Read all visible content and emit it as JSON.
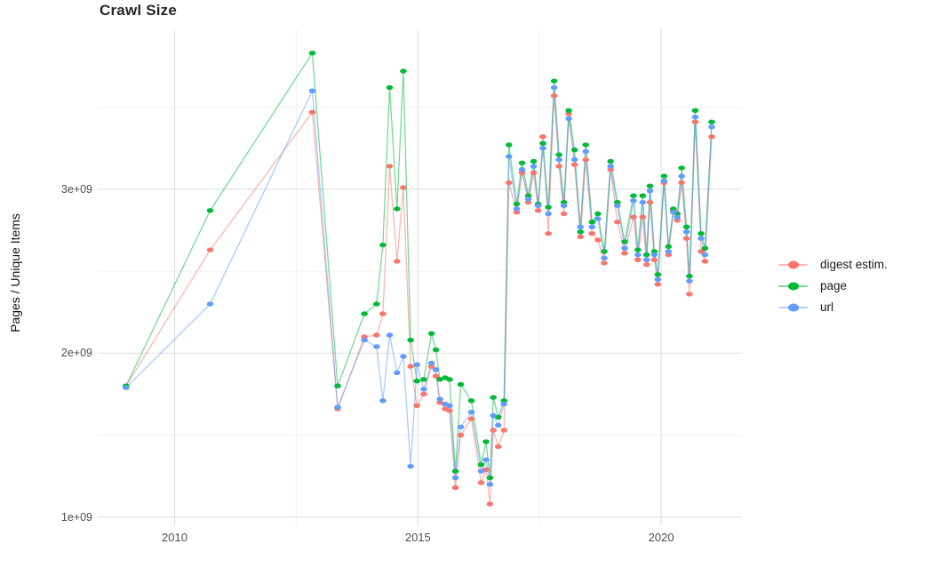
{
  "title": "Crawl Size",
  "y_axis": {
    "label": "Pages / Unique Items",
    "ticks": [
      "1e+09",
      "2e+09",
      "3e+09"
    ]
  },
  "x_axis": {
    "ticks": [
      "2010",
      "2015",
      "2020"
    ]
  },
  "legend": {
    "items": [
      {
        "label": "digest estim.",
        "color": "#F8766D"
      },
      {
        "label": "page",
        "color": "#00BA38"
      },
      {
        "label": "url",
        "color": "#619CFF"
      }
    ]
  },
  "chart_data": {
    "type": "line",
    "title": "Crawl Size",
    "xlabel": "",
    "ylabel": "Pages / Unique Items",
    "x_unit": "year",
    "y_unit": "pages / unique items",
    "grid": true,
    "legend_position": "right",
    "xlim": [
      2008.42,
      2021.66
    ],
    "ylim": [
      950000000.0,
      3975000000.0
    ],
    "x_ticks": [
      2010,
      2015,
      2020
    ],
    "x_minor": [
      2012.5,
      2017.5
    ],
    "y_ticks": [
      1000000000.0,
      2000000000.0,
      3000000000.0
    ],
    "y_minor": [
      1500000000.0,
      2500000000.0,
      3500000000.0
    ],
    "x": [
      2009.0,
      2010.73,
      2012.83,
      2013.35,
      2013.9,
      2014.15,
      2014.28,
      2014.42,
      2014.57,
      2014.7,
      2014.85,
      2014.98,
      2015.12,
      2015.28,
      2015.37,
      2015.45,
      2015.56,
      2015.65,
      2015.77,
      2015.88,
      2016.1,
      2016.3,
      2016.4,
      2016.48,
      2016.55,
      2016.65,
      2016.77,
      2016.87,
      2017.03,
      2017.14,
      2017.27,
      2017.38,
      2017.47,
      2017.57,
      2017.68,
      2017.8,
      2017.9,
      2018.0,
      2018.1,
      2018.22,
      2018.34,
      2018.45,
      2018.58,
      2018.7,
      2018.83,
      2018.96,
      2019.1,
      2019.25,
      2019.43,
      2019.52,
      2019.62,
      2019.7,
      2019.77,
      2019.86,
      2019.93,
      2020.06,
      2020.15,
      2020.25,
      2020.33,
      2020.42,
      2020.52,
      2020.58,
      2020.7,
      2020.82,
      2020.9,
      2021.04
    ],
    "series": [
      {
        "name": "digest estim.",
        "color": "#F8766D",
        "values": [
          1800000000.0,
          2630000000.0,
          3470000000.0,
          1660000000.0,
          2100000000.0,
          2110000000.0,
          2240000000.0,
          3140000000.0,
          2560000000.0,
          3010000000.0,
          1920000000.0,
          1680000000.0,
          1750000000.0,
          1920000000.0,
          1860000000.0,
          1700000000.0,
          1660000000.0,
          1650000000.0,
          1180000000.0,
          1500000000.0,
          1600000000.0,
          1210000000.0,
          1290000000.0,
          1080000000.0,
          1530000000.0,
          1430000000.0,
          1530000000.0,
          3040000000.0,
          2860000000.0,
          3100000000.0,
          2920000000.0,
          3100000000.0,
          2870000000.0,
          3320000000.0,
          2730000000.0,
          3570000000.0,
          3140000000.0,
          2850000000.0,
          3460000000.0,
          3150000000.0,
          2710000000.0,
          3180000000.0,
          2730000000.0,
          2690000000.0,
          2550000000.0,
          3120000000.0,
          2800000000.0,
          2610000000.0,
          2830000000.0,
          2570000000.0,
          2830000000.0,
          2540000000.0,
          2920000000.0,
          2570000000.0,
          2420000000.0,
          3040000000.0,
          2600000000.0,
          2870000000.0,
          2810000000.0,
          3040000000.0,
          2700000000.0,
          2360000000.0,
          3410000000.0,
          2620000000.0,
          2560000000.0,
          3320000000.0
        ]
      },
      {
        "name": "page",
        "color": "#00BA38",
        "values": [
          1800000000.0,
          2870000000.0,
          3830000000.0,
          1800000000.0,
          2240000000.0,
          2300000000.0,
          2660000000.0,
          3620000000.0,
          2880000000.0,
          3720000000.0,
          2080000000.0,
          1830000000.0,
          1840000000.0,
          2120000000.0,
          2020000000.0,
          1840000000.0,
          1850000000.0,
          1840000000.0,
          1280000000.0,
          1810000000.0,
          1710000000.0,
          1320000000.0,
          1460000000.0,
          1240000000.0,
          1730000000.0,
          1610000000.0,
          1710000000.0,
          3270000000.0,
          2910000000.0,
          3160000000.0,
          2960000000.0,
          3170000000.0,
          2910000000.0,
          3280000000.0,
          2890000000.0,
          3660000000.0,
          3210000000.0,
          2920000000.0,
          3480000000.0,
          3240000000.0,
          2740000000.0,
          3270000000.0,
          2800000000.0,
          2850000000.0,
          2620000000.0,
          3170000000.0,
          2920000000.0,
          2680000000.0,
          2960000000.0,
          2630000000.0,
          2960000000.0,
          2600000000.0,
          3020000000.0,
          2620000000.0,
          2480000000.0,
          3080000000.0,
          2650000000.0,
          2880000000.0,
          2850000000.0,
          3130000000.0,
          2770000000.0,
          2470000000.0,
          3480000000.0,
          2730000000.0,
          2640000000.0,
          3410000000.0
        ]
      },
      {
        "name": "url",
        "color": "#619CFF",
        "values": [
          1790000000.0,
          2300000000.0,
          3600000000.0,
          1670000000.0,
          2080000000.0,
          2040000000.0,
          1710000000.0,
          2110000000.0,
          1880000000.0,
          1980000000.0,
          1310000000.0,
          1930000000.0,
          1780000000.0,
          1940000000.0,
          1900000000.0,
          1720000000.0,
          1690000000.0,
          1680000000.0,
          1240000000.0,
          1550000000.0,
          1640000000.0,
          1280000000.0,
          1350000000.0,
          1200000000.0,
          1620000000.0,
          1560000000.0,
          1690000000.0,
          3200000000.0,
          2880000000.0,
          3120000000.0,
          2940000000.0,
          3140000000.0,
          2900000000.0,
          3250000000.0,
          2850000000.0,
          3620000000.0,
          3180000000.0,
          2900000000.0,
          3430000000.0,
          3180000000.0,
          2770000000.0,
          3230000000.0,
          2770000000.0,
          2820000000.0,
          2580000000.0,
          3140000000.0,
          2900000000.0,
          2640000000.0,
          2930000000.0,
          2600000000.0,
          2920000000.0,
          2570000000.0,
          2990000000.0,
          2600000000.0,
          2450000000.0,
          3050000000.0,
          2620000000.0,
          2860000000.0,
          2830000000.0,
          3080000000.0,
          2740000000.0,
          2440000000.0,
          3440000000.0,
          2700000000.0,
          2600000000.0,
          3380000000.0
        ]
      }
    ]
  }
}
